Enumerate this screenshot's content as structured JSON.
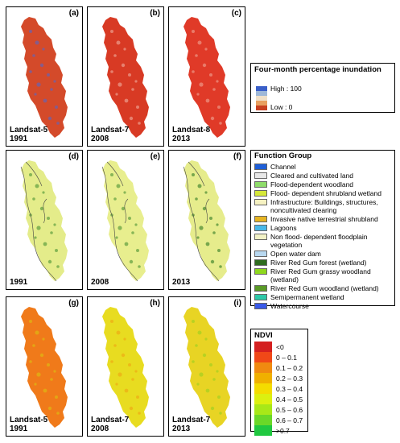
{
  "inundation_panels": [
    {
      "label": "(a)",
      "line1": "Landsat-5",
      "line2": "1991"
    },
    {
      "label": "(b)",
      "line1": "Landsat-7",
      "line2": "2008"
    },
    {
      "label": "(c)",
      "line1": "Landsat-8",
      "line2": "2013"
    }
  ],
  "function_panels": [
    {
      "label": "(d)",
      "line1": "",
      "line2": "1991"
    },
    {
      "label": "(e)",
      "line1": "",
      "line2": "2008"
    },
    {
      "label": "(f)",
      "line1": "",
      "line2": "2013"
    }
  ],
  "ndvi_panels": [
    {
      "label": "(g)",
      "line1": "Landsat-5",
      "line2": "1991"
    },
    {
      "label": "(h)",
      "line1": "Landsat-7",
      "line2": "2008"
    },
    {
      "label": "(i)",
      "line1": "Landsat-7",
      "line2": "2013"
    }
  ],
  "inundation_legend": {
    "title": "Four-month percentage inundation",
    "high": "High : 100",
    "low": "Low : 0",
    "colors": [
      "#3a5fc8",
      "#9fb8d8",
      "#f0e0c8",
      "#e8a060",
      "#c84020"
    ]
  },
  "function_legend": {
    "title": "Function Group",
    "items": [
      {
        "label": "Channel",
        "color": "#1f5fd8"
      },
      {
        "label": "Cleared and cultivated land",
        "color": "#e8e8e8"
      },
      {
        "label": "Flood-dependent woodland",
        "color": "#8edc6a"
      },
      {
        "label": "Flood- dependent shrubland wetland",
        "color": "#d6e83a"
      },
      {
        "label": "Infrastructure: Buildings, structures, noncultivated clearing",
        "color": "#f6f2c2"
      },
      {
        "label": "Invasive native terrestrial shrubland",
        "color": "#e6b422"
      },
      {
        "label": "Lagoons",
        "color": "#48b8e8"
      },
      {
        "label": "Non flood- dependent floodplain vegetation",
        "color": "#f2f2c6"
      },
      {
        "label": "Open water dam",
        "color": "#b8d8f0"
      },
      {
        "label": "River Red Gum forest (wetland)",
        "color": "#2e6b1e"
      },
      {
        "label": "River Red Gum grassy woodland (wetland)",
        "color": "#8ed81e"
      },
      {
        "label": "River Red Gum woodland (wetland)",
        "color": "#5a9a26"
      },
      {
        "label": "Semipermanent wetland",
        "color": "#2ec8a8"
      },
      {
        "label": "Watercourse",
        "color": "#3a5ae8"
      }
    ]
  },
  "ndvi_legend": {
    "title": "NDVI",
    "classes": [
      {
        "label": "<0",
        "color": "#d42020"
      },
      {
        "label": "0 – 0.1",
        "color": "#f04818"
      },
      {
        "label": "0.1 – 0.2",
        "color": "#f08a10"
      },
      {
        "label": "0.2 – 0.3",
        "color": "#f0b000"
      },
      {
        "label": "0.3 – 0.4",
        "color": "#f4dc00"
      },
      {
        "label": "0.4 – 0.5",
        "color": "#dcf010"
      },
      {
        "label": "0.5 – 0.6",
        "color": "#a8e818"
      },
      {
        "label": "0.6 – 0.7",
        "color": "#6ad828"
      },
      {
        "label": ">0.7",
        "color": "#20c840"
      }
    ]
  }
}
